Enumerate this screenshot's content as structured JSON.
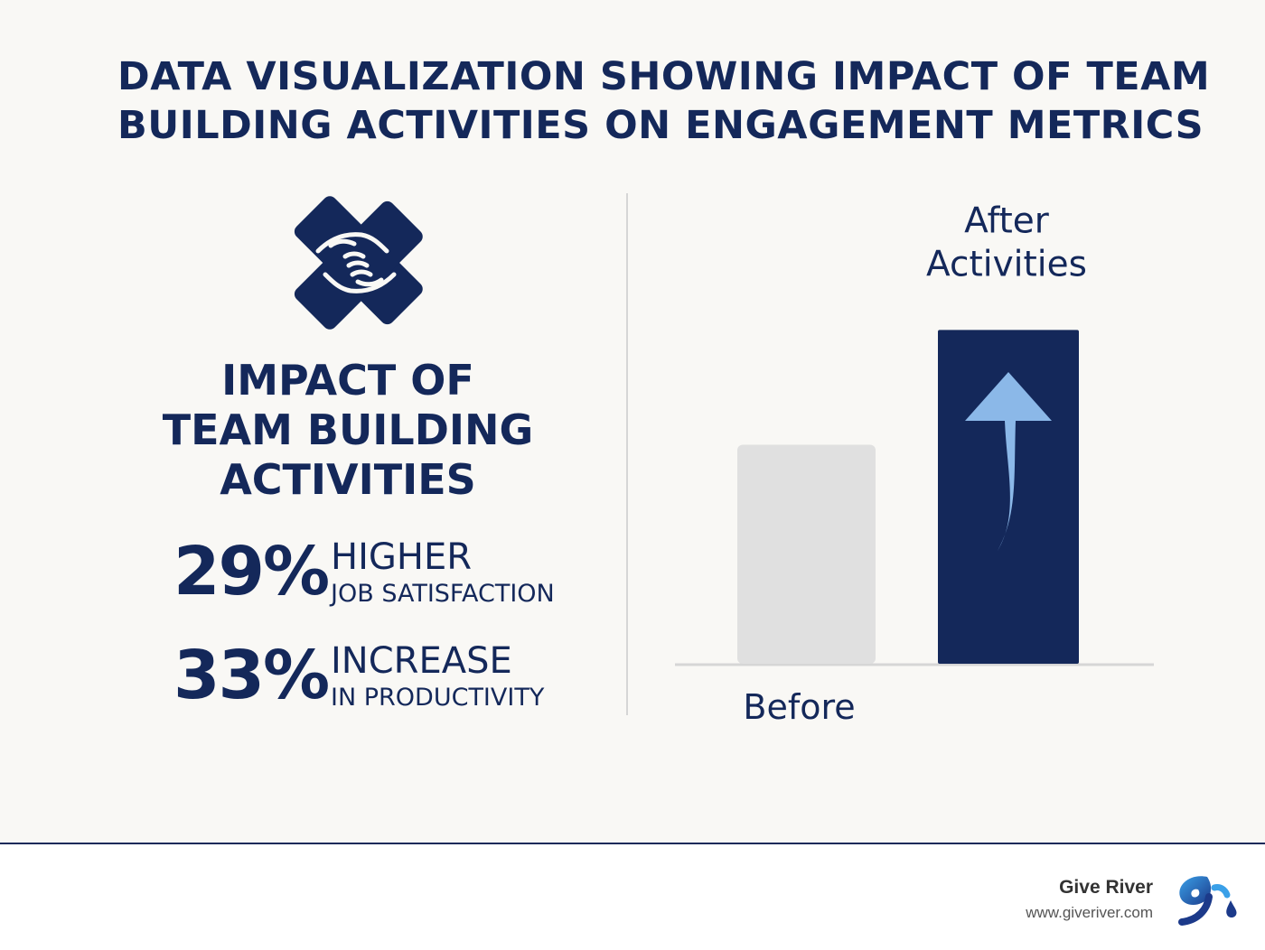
{
  "title": {
    "line1": "DATA VISUALIZATION SHOWING IMPACT OF TEAM",
    "line2": "BUILDING ACTIVITIES ON ENGAGEMENT METRICS"
  },
  "left_panel": {
    "icon": "team-hands-icon",
    "heading": [
      "IMPACT OF",
      "TEAM BUILDING",
      "ACTIVITIES"
    ],
    "stats": [
      {
        "value": "29%",
        "head": "HIGHER",
        "sub": "JOB SATISFACTION"
      },
      {
        "value": "33%",
        "head": "INCREASE",
        "sub": "IN PRODUCTIVITY"
      }
    ]
  },
  "chart_data": {
    "type": "bar",
    "categories": [
      "Before",
      "After Activities"
    ],
    "category_lines": [
      [
        "Before"
      ],
      [
        "After",
        "Activities"
      ]
    ],
    "values": [
      63,
      96
    ],
    "ylim": [
      0,
      100
    ],
    "colors": [
      "#e0e0e0",
      "#14285a"
    ],
    "arrow_color": "#8bb8e8",
    "arrow_icon": "up-arrow-icon",
    "grid": false,
    "title": "",
    "xlabel": "",
    "ylabel": ""
  },
  "footer": {
    "brand": "Give River",
    "url": "www.giveriver.com",
    "logo_icon": "give-river-logo-icon"
  },
  "colors": {
    "navy": "#14285a",
    "background": "#f9f8f5",
    "light_blue": "#8bb8e8",
    "gray_bar": "#e0e0e0"
  }
}
